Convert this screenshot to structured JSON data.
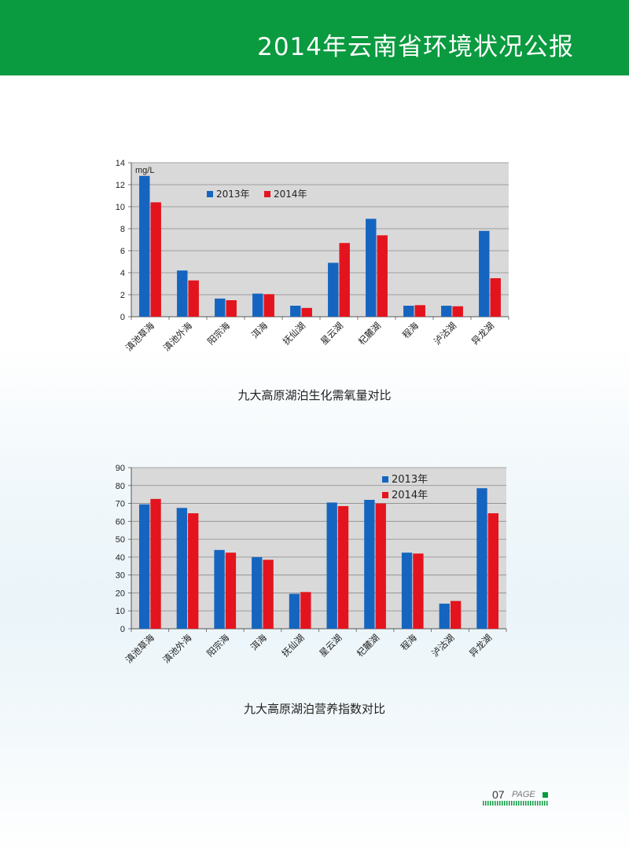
{
  "header": {
    "title": "2014年云南省环境状况公报"
  },
  "page": {
    "number": "07",
    "label": "PAGE"
  },
  "chart_data": [
    {
      "type": "bar",
      "title": "九大高原湖泊生化需氧量对比",
      "unit_label": "mg/L",
      "categories": [
        "滇池草海",
        "滇池外海",
        "阳宗海",
        "洱海",
        "抚仙湖",
        "星云湖",
        "杞麓湖",
        "程海",
        "泸沽湖",
        "异龙湖"
      ],
      "series": [
        {
          "name": "2013年",
          "color": "#1565c0",
          "values": [
            12.8,
            4.2,
            1.65,
            2.1,
            1.0,
            4.9,
            8.9,
            1.0,
            1.0,
            7.8
          ]
        },
        {
          "name": "2014年",
          "color": "#e4141e",
          "values": [
            10.4,
            3.3,
            1.5,
            2.05,
            0.8,
            6.7,
            7.4,
            1.05,
            0.95,
            3.5
          ]
        }
      ],
      "ylim": [
        0,
        14
      ],
      "yticks": [
        0,
        2,
        4,
        6,
        8,
        10,
        12,
        14
      ],
      "grid": true,
      "legend": "top-left"
    },
    {
      "type": "bar",
      "title": "九大高原湖泊营养指数对比",
      "categories": [
        "滇池草海",
        "滇池外海",
        "阳宗海",
        "洱海",
        "抚仙湖",
        "星云湖",
        "杞麓湖",
        "程海",
        "泸沽湖",
        "异龙湖"
      ],
      "series": [
        {
          "name": "2013年",
          "color": "#1565c0",
          "values": [
            69.5,
            67.5,
            44.0,
            40.0,
            19.5,
            70.5,
            72.0,
            42.5,
            14.0,
            78.5
          ]
        },
        {
          "name": "2014年",
          "color": "#e4141e",
          "values": [
            72.5,
            64.5,
            42.5,
            38.5,
            20.5,
            68.5,
            70.0,
            42.0,
            15.5,
            64.5
          ]
        }
      ],
      "ylim": [
        0,
        90
      ],
      "yticks": [
        0,
        10,
        20,
        30,
        40,
        50,
        60,
        70,
        80,
        90
      ],
      "grid": true,
      "legend": "top-right"
    }
  ]
}
